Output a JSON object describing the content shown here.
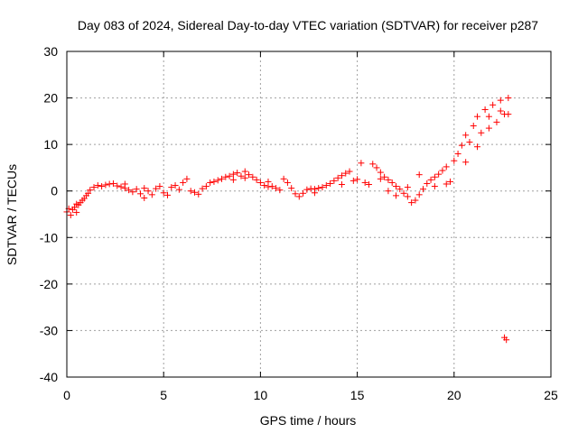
{
  "chart_data": {
    "type": "scatter",
    "title": "Day 083 of 2024, Sidereal Day-to-day VTEC variation (SDTVAR) for receiver p287",
    "xlabel": "GPS time / hours",
    "ylabel": "SDTVAR / TECUs",
    "xlim": [
      0,
      25
    ],
    "ylim": [
      -40,
      30
    ],
    "xticks": [
      0,
      5,
      10,
      15,
      20,
      25
    ],
    "yticks": [
      -40,
      -30,
      -20,
      -10,
      0,
      10,
      20,
      30
    ],
    "grid": true,
    "marker": "+",
    "colors": {
      "series": "#ff0000"
    },
    "series": [
      {
        "name": "",
        "values": [
          [
            0.0,
            -4.5
          ],
          [
            0.1,
            -3.8
          ],
          [
            0.2,
            -5.2
          ],
          [
            0.3,
            -4.0
          ],
          [
            0.4,
            -3.5
          ],
          [
            0.5,
            -4.6
          ],
          [
            0.6,
            -3.0
          ],
          [
            0.7,
            -2.5
          ],
          [
            0.8,
            -2.0
          ],
          [
            0.9,
            -1.6
          ],
          [
            1.0,
            -1.0
          ],
          [
            1.1,
            -0.5
          ],
          [
            1.2,
            0.2
          ],
          [
            1.4,
            0.8
          ],
          [
            1.6,
            1.2
          ],
          [
            1.8,
            1.0
          ],
          [
            2.0,
            1.3
          ],
          [
            2.2,
            1.5
          ],
          [
            2.4,
            1.6
          ],
          [
            2.6,
            1.1
          ],
          [
            2.8,
            0.9
          ],
          [
            3.0,
            0.6
          ],
          [
            3.2,
            0.2
          ],
          [
            3.4,
            -0.2
          ],
          [
            3.6,
            0.4
          ],
          [
            3.8,
            -0.6
          ],
          [
            4.0,
            -1.5
          ],
          [
            4.2,
            0.0
          ],
          [
            4.4,
            -0.8
          ],
          [
            4.6,
            0.5
          ],
          [
            4.8,
            1.0
          ],
          [
            5.0,
            -0.4
          ],
          [
            5.2,
            -0.9
          ],
          [
            5.4,
            0.8
          ],
          [
            5.6,
            1.2
          ],
          [
            5.8,
            0.3
          ],
          [
            6.0,
            1.8
          ],
          [
            6.2,
            2.6
          ],
          [
            6.4,
            0.0
          ],
          [
            6.6,
            -0.3
          ],
          [
            6.8,
            -0.7
          ],
          [
            7.0,
            0.5
          ],
          [
            7.2,
            1.0
          ],
          [
            7.4,
            1.8
          ],
          [
            7.6,
            2.0
          ],
          [
            7.8,
            2.3
          ],
          [
            8.0,
            2.6
          ],
          [
            8.2,
            3.0
          ],
          [
            8.4,
            3.2
          ],
          [
            8.6,
            3.6
          ],
          [
            8.8,
            3.9
          ],
          [
            9.0,
            3.2
          ],
          [
            9.2,
            2.8
          ],
          [
            9.4,
            3.5
          ],
          [
            9.6,
            3.0
          ],
          [
            9.8,
            2.4
          ],
          [
            10.0,
            1.8
          ],
          [
            10.2,
            1.2
          ],
          [
            10.4,
            0.9
          ],
          [
            10.6,
            1.0
          ],
          [
            10.8,
            0.6
          ],
          [
            11.0,
            0.2
          ],
          [
            11.2,
            2.6
          ],
          [
            11.4,
            1.8
          ],
          [
            11.6,
            0.6
          ],
          [
            11.8,
            -0.6
          ],
          [
            12.0,
            -1.2
          ],
          [
            12.2,
            -0.5
          ],
          [
            12.4,
            0.3
          ],
          [
            12.6,
            0.5
          ],
          [
            12.8,
            0.4
          ],
          [
            13.0,
            0.6
          ],
          [
            13.2,
            0.8
          ],
          [
            13.4,
            1.2
          ],
          [
            13.6,
            1.6
          ],
          [
            13.8,
            2.2
          ],
          [
            14.0,
            2.8
          ],
          [
            14.2,
            3.3
          ],
          [
            14.4,
            3.8
          ],
          [
            14.6,
            4.2
          ],
          [
            14.8,
            2.2
          ],
          [
            15.0,
            2.5
          ],
          [
            15.2,
            6.0
          ],
          [
            15.4,
            1.8
          ],
          [
            15.6,
            1.4
          ],
          [
            15.8,
            5.8
          ],
          [
            16.0,
            5.0
          ],
          [
            16.2,
            4.0
          ],
          [
            16.4,
            3.0
          ],
          [
            16.6,
            2.4
          ],
          [
            16.8,
            1.8
          ],
          [
            17.0,
            1.0
          ],
          [
            17.2,
            0.4
          ],
          [
            17.4,
            -0.5
          ],
          [
            17.6,
            -1.2
          ],
          [
            17.8,
            -2.5
          ],
          [
            18.0,
            -2.0
          ],
          [
            18.2,
            -0.8
          ],
          [
            18.4,
            0.4
          ],
          [
            18.6,
            1.6
          ],
          [
            18.8,
            2.4
          ],
          [
            19.0,
            1.0
          ],
          [
            19.2,
            3.6
          ],
          [
            19.4,
            4.4
          ],
          [
            19.6,
            5.2
          ],
          [
            19.8,
            2.0
          ],
          [
            20.0,
            6.5
          ],
          [
            20.2,
            8.0
          ],
          [
            20.4,
            9.8
          ],
          [
            20.6,
            12.0
          ],
          [
            20.8,
            10.5
          ],
          [
            21.0,
            14.0
          ],
          [
            21.2,
            16.0
          ],
          [
            21.4,
            12.5
          ],
          [
            21.6,
            17.5
          ],
          [
            21.8,
            13.5
          ],
          [
            22.0,
            18.5
          ],
          [
            22.2,
            14.8
          ],
          [
            22.4,
            19.5
          ],
          [
            22.6,
            16.5
          ],
          [
            22.8,
            20.0
          ],
          [
            22.8,
            16.5
          ],
          [
            22.6,
            -31.5
          ],
          [
            22.7,
            -32.0
          ],
          [
            16.2,
            2.6
          ],
          [
            16.6,
            0.0
          ],
          [
            17.0,
            -1.0
          ],
          [
            17.6,
            0.8
          ],
          [
            18.2,
            3.5
          ],
          [
            19.0,
            3.0
          ],
          [
            19.6,
            1.5
          ],
          [
            0.5,
            -2.8
          ],
          [
            3.0,
            1.5
          ],
          [
            4.0,
            0.6
          ],
          [
            8.6,
            2.4
          ],
          [
            9.2,
            4.2
          ],
          [
            10.4,
            2.0
          ],
          [
            12.8,
            -0.4
          ],
          [
            14.2,
            1.4
          ],
          [
            20.6,
            6.2
          ],
          [
            21.2,
            9.5
          ],
          [
            21.8,
            16.0
          ],
          [
            22.4,
            17.2
          ]
        ]
      }
    ]
  }
}
